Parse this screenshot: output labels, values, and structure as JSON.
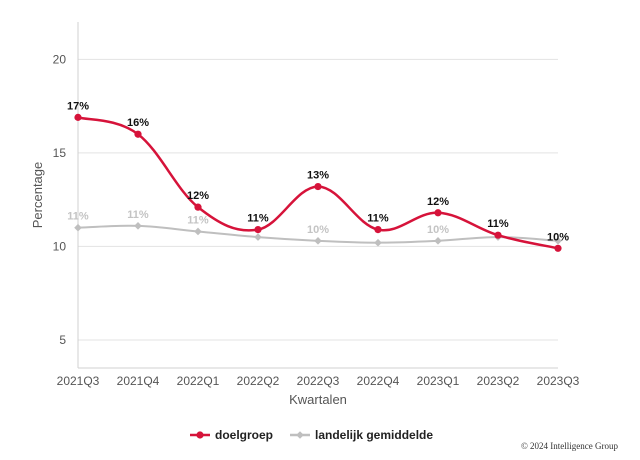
{
  "chart_data": {
    "type": "line",
    "title": "",
    "xlabel": "Kwartalen",
    "ylabel": "Percentage",
    "ylim": [
      3.5,
      22
    ],
    "yticks": [
      5,
      10,
      15,
      20
    ],
    "grid": true,
    "legend_position": "bottom-center",
    "categories": [
      "2021Q3",
      "2021Q4",
      "2022Q1",
      "2022Q2",
      "2022Q3",
      "2022Q4",
      "2023Q1",
      "2023Q2",
      "2023Q3"
    ],
    "series": [
      {
        "name": "doelgroep",
        "color": "#d6133a",
        "label_color": "#111111",
        "values": [
          16.9,
          16.0,
          12.1,
          10.9,
          13.2,
          10.9,
          11.8,
          10.6,
          9.9
        ],
        "labels": [
          "17%",
          "16%",
          "12%",
          "11%",
          "13%",
          "11%",
          "12%",
          "11%",
          "10%"
        ]
      },
      {
        "name": "landelijk gemiddelde",
        "color": "#bfbfbf",
        "label_color": "#c4c4c4",
        "values": [
          11.0,
          11.1,
          10.8,
          10.5,
          10.3,
          10.2,
          10.3,
          10.5,
          10.3
        ],
        "labels": [
          "11%",
          "11%",
          "11%",
          "",
          "10%",
          "",
          "10%",
          "",
          ""
        ]
      }
    ]
  },
  "copyright": "© 2024 Intelligence Group"
}
